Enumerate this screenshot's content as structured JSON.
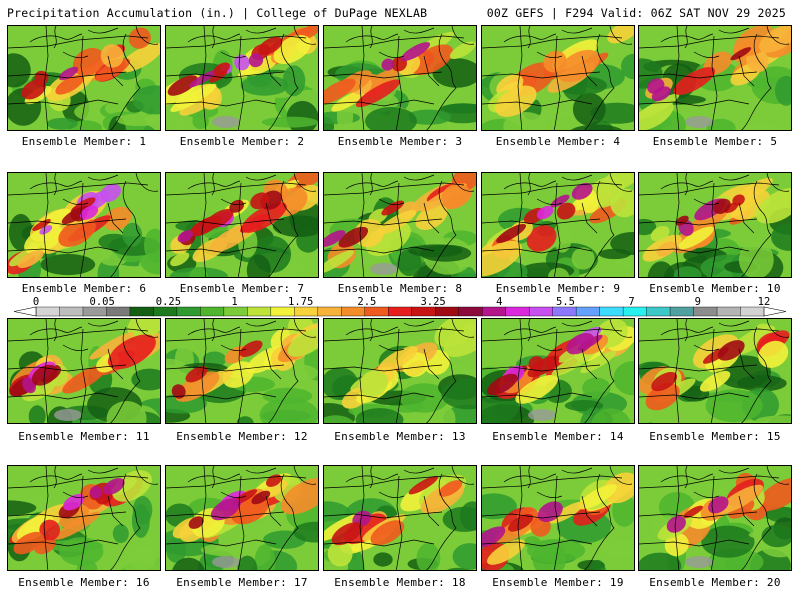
{
  "header": {
    "title_left": "Precipitation Accumulation (in.) | College of DuPage NEXLAB",
    "title_right": "00Z GEFS | F294 Valid: 06Z SAT NOV 29 2025"
  },
  "legend": {
    "tick_labels": [
      "0",
      "0.05",
      "0.25",
      "1",
      "1.75",
      "2.5",
      "3.25",
      "4",
      "5.5",
      "7",
      "9",
      "12"
    ],
    "colors": [
      "#d4d4d4",
      "#bdbdbd",
      "#9a9a9a",
      "#7a7a7a",
      "#145f14",
      "#1d7a1d",
      "#2f9a2f",
      "#4fb52f",
      "#7ccc3a",
      "#bde33a",
      "#f2f23a",
      "#f7d23a",
      "#f7b23a",
      "#f58c2a",
      "#ef5a1e",
      "#e61e1e",
      "#c81414",
      "#a00a14",
      "#8c0a3c",
      "#b4148c",
      "#dc28dc",
      "#c850f0",
      "#8c78ff",
      "#64a0ff",
      "#3cdcff",
      "#28f0f0",
      "#3cc8c8",
      "#50a0a0",
      "#8c8c8c",
      "#b4b4b4",
      "#d2d2d2"
    ]
  },
  "members": [
    {
      "label": "Ensemble Member: 1"
    },
    {
      "label": "Ensemble Member: 2"
    },
    {
      "label": "Ensemble Member: 3"
    },
    {
      "label": "Ensemble Member: 4"
    },
    {
      "label": "Ensemble Member: 5"
    },
    {
      "label": "Ensemble Member: 6"
    },
    {
      "label": "Ensemble Member: 7"
    },
    {
      "label": "Ensemble Member: 8"
    },
    {
      "label": "Ensemble Member: 9"
    },
    {
      "label": "Ensemble Member: 10"
    },
    {
      "label": "Ensemble Member: 11"
    },
    {
      "label": "Ensemble Member: 12"
    },
    {
      "label": "Ensemble Member: 13"
    },
    {
      "label": "Ensemble Member: 14"
    },
    {
      "label": "Ensemble Member: 15"
    },
    {
      "label": "Ensemble Member: 16"
    },
    {
      "label": "Ensemble Member: 17"
    },
    {
      "label": "Ensemble Member: 18"
    },
    {
      "label": "Ensemble Member: 19"
    },
    {
      "label": "Ensemble Member: 20"
    }
  ]
}
